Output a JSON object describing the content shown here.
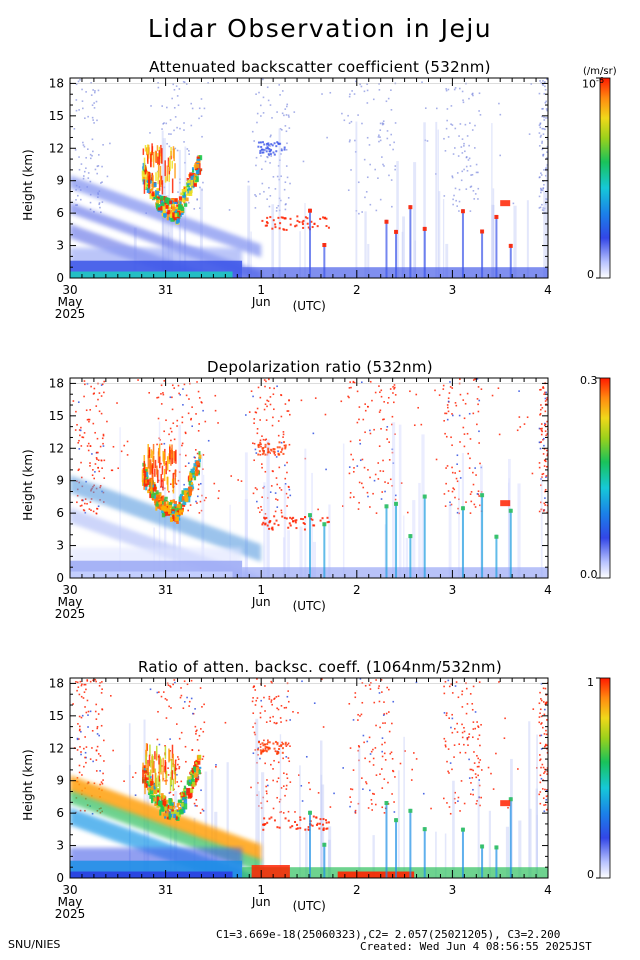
{
  "title": "Lidar Observation in Jeju",
  "footer": {
    "left": "SNU/NIES",
    "constants": "C1=3.669e-18(25060323),C2= 2.057(25021205), C3=2.200",
    "created": "Created: Wed Jun  4 08:56:55 2025JST"
  },
  "axis_common": {
    "x_tick_labels": [
      "30",
      "31",
      "1",
      "2",
      "3",
      "4"
    ],
    "x_sub_labels": [
      "May",
      "Jun"
    ],
    "x_year": "2025",
    "x_unit": "(UTC)",
    "y_label": "Height (km)",
    "y_ticks": [
      "0",
      "3",
      "6",
      "9",
      "12",
      "15",
      "18"
    ]
  },
  "chart_data": [
    {
      "type": "heatmap",
      "title": "Attenuated backscatter coefficient (532nm)",
      "ylabel": "Height (km)",
      "ylim": [
        0,
        18.5
      ],
      "xlim": [
        "2025-05-30",
        "2025-06-04"
      ],
      "colorbar": {
        "unit": "(/m/sr)",
        "max_label": "10",
        "max_exp": "-6",
        "min_label": "0"
      },
      "features": [
        {
          "desc": "boundary layer aerosol",
          "start": "2025-05-30",
          "end": "2025-06-04",
          "height_km": [
            0,
            2
          ]
        },
        {
          "desc": "cirrus/mid-level cloud",
          "start": "2025-05-31T00",
          "end": "2025-06-01",
          "height_km": [
            5.5,
            12
          ]
        }
      ]
    },
    {
      "type": "heatmap",
      "title": "Depolarization ratio (532nm)",
      "ylabel": "Height (km)",
      "ylim": [
        0,
        18.5
      ],
      "xlim": [
        "2025-05-30",
        "2025-06-04"
      ],
      "colorbar": {
        "max_label": "0.3",
        "min_label": "0.0"
      }
    },
    {
      "type": "heatmap",
      "title": "Ratio of atten. backsc. coeff. (1064nm/532nm)",
      "ylabel": "Height (km)",
      "ylim": [
        0,
        18.5
      ],
      "xlim": [
        "2025-05-30",
        "2025-06-04"
      ],
      "colorbar": {
        "max_label": "1",
        "min_label": "0"
      }
    }
  ]
}
